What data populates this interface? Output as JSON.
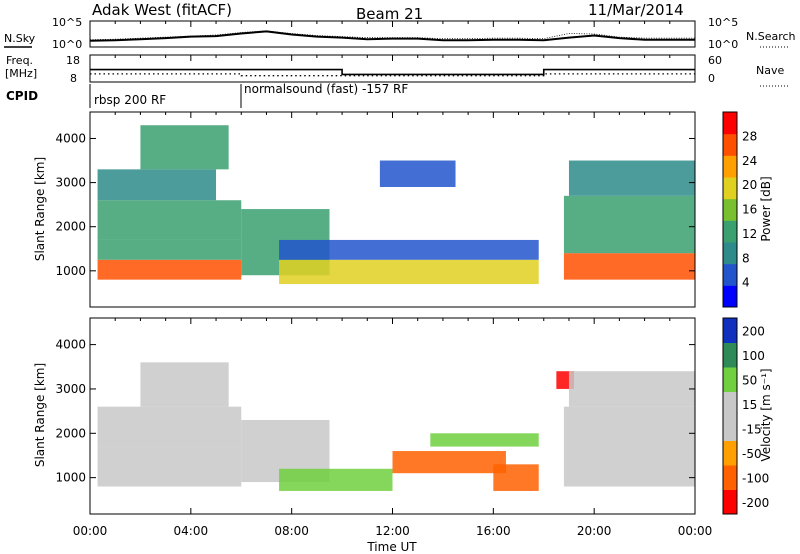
{
  "header": {
    "station": "Adak West (fitACF)",
    "beam": "Beam 21",
    "date": "11/Mar/2014"
  },
  "chart_data": [
    {
      "type": "line",
      "panel": "noise",
      "left_label": "N.Sky",
      "right_label": "N.Search",
      "yticks_left": [
        "10^5",
        "10^0"
      ],
      "yticks_right": [
        "10^5",
        "10^0"
      ],
      "x": [
        0,
        1,
        2,
        3,
        4,
        5,
        6,
        7,
        8,
        9,
        10,
        11,
        12,
        13,
        14,
        15,
        16,
        17,
        18,
        19,
        20,
        21,
        22,
        23,
        24
      ],
      "sky_log": [
        1.2,
        1.3,
        1.5,
        1.7,
        2.0,
        2.1,
        2.6,
        3.0,
        2.4,
        2.0,
        1.8,
        1.5,
        1.6,
        1.6,
        1.3,
        1.3,
        1.4,
        1.4,
        1.3,
        1.8,
        2.2,
        1.7,
        1.4,
        1.4,
        1.4
      ],
      "search_log": [
        1.4,
        1.5,
        1.7,
        1.9,
        2.1,
        2.3,
        2.8,
        3.1,
        2.6,
        2.2,
        2.0,
        1.8,
        1.8,
        1.8,
        1.6,
        1.6,
        1.7,
        1.7,
        1.6,
        2.6,
        2.5,
        1.9,
        1.7,
        1.7,
        1.7
      ]
    },
    {
      "type": "line",
      "panel": "frequency",
      "left_label": "Freq. [MHz]",
      "right_label": "Nave",
      "yticks_left": [
        "18",
        "8"
      ],
      "yticks_right": [
        "60",
        "0"
      ],
      "freq_steps": [
        [
          0,
          12.6
        ],
        [
          10,
          10.8
        ],
        [
          18,
          12.6
        ],
        [
          24,
          12.6
        ]
      ],
      "nave_steps": [
        [
          0,
          18
        ],
        [
          6,
          14
        ],
        [
          18,
          18
        ],
        [
          24,
          18
        ]
      ]
    },
    {
      "type": "table",
      "panel": "cpid",
      "label": "CPID",
      "segments": [
        {
          "start": 0,
          "end": 6,
          "text": "rbsp 200 RF"
        },
        {
          "start": 6,
          "end": 24,
          "text": "normalsound (fast) -157 RF"
        }
      ]
    },
    {
      "type": "heatmap",
      "panel": "power",
      "ylabel": "Slant Range [km]",
      "yticks": [
        "1000",
        "2000",
        "3000",
        "4000"
      ],
      "ytick_values": [
        1000,
        2000,
        3000,
        4000
      ],
      "ylim": [
        180,
        4600
      ],
      "xlim": [
        0,
        24
      ],
      "colorbar_label": "Power [dB]",
      "colorbar_ticks": [
        "28",
        "24",
        "20",
        "16",
        "12",
        "8",
        "4"
      ],
      "colorbar_values": [
        28,
        24,
        20,
        16,
        12,
        8,
        4
      ],
      "clim": [
        0,
        32
      ],
      "colors": [
        "#0000ff",
        "#2255cc",
        "#2e8b8b",
        "#3aa070",
        "#78c030",
        "#e0d020",
        "#ffa000",
        "#ff5000",
        "#ff0000"
      ],
      "regions": [
        {
          "t0": 0.3,
          "t1": 6.0,
          "r0": 800,
          "r1": 1250,
          "v": 28
        },
        {
          "t0": 0.3,
          "t1": 6.0,
          "r0": 1250,
          "r1": 1700,
          "v": 14
        },
        {
          "t0": 0.3,
          "t1": 6.0,
          "r0": 1700,
          "r1": 2600,
          "v": 11
        },
        {
          "t0": 0.3,
          "t1": 5.0,
          "r0": 2600,
          "r1": 3300,
          "v": 9
        },
        {
          "t0": 2.0,
          "t1": 5.5,
          "r0": 3300,
          "r1": 4300,
          "v": 14
        },
        {
          "t0": 6.0,
          "t1": 9.5,
          "r0": 900,
          "r1": 2400,
          "v": 12
        },
        {
          "t0": 7.5,
          "t1": 17.8,
          "r0": 700,
          "r1": 1250,
          "v": 18
        },
        {
          "t0": 7.5,
          "t1": 17.8,
          "r0": 1250,
          "r1": 1700,
          "v": 6
        },
        {
          "t0": 11.5,
          "t1": 14.5,
          "r0": 2900,
          "r1": 3500,
          "v": 5
        },
        {
          "t0": 18.8,
          "t1": 24.0,
          "r0": 800,
          "r1": 1400,
          "v": 26
        },
        {
          "t0": 18.8,
          "t1": 24.0,
          "r0": 1400,
          "r1": 2700,
          "v": 12
        },
        {
          "t0": 19.0,
          "t1": 24.0,
          "r0": 2700,
          "r1": 3500,
          "v": 9
        }
      ]
    },
    {
      "type": "heatmap",
      "panel": "velocity",
      "xlabel": "Time UT",
      "ylabel": "Slant Range [km]",
      "xticks": [
        "00:00",
        "04:00",
        "08:00",
        "12:00",
        "16:00",
        "20:00",
        "00:00"
      ],
      "xtick_values": [
        0,
        4,
        8,
        12,
        16,
        20,
        24
      ],
      "yticks": [
        "1000",
        "2000",
        "3000",
        "4000"
      ],
      "ytick_values": [
        1000,
        2000,
        3000,
        4000
      ],
      "ylim": [
        180,
        4600
      ],
      "xlim": [
        0,
        24
      ],
      "colorbar_label": "Velocity [m s⁻¹]",
      "colorbar_ticks": [
        "200",
        "100",
        "50",
        "15",
        "-15",
        "-50",
        "-100",
        "-200"
      ],
      "colorbar_values": [
        200,
        100,
        50,
        15,
        -15,
        -50,
        -100,
        -200
      ],
      "clim": [
        -250,
        250
      ],
      "colors": [
        "#ff0000",
        "#ff6000",
        "#ffa000",
        "#c8c8c8",
        "#c8c8c8",
        "#70d040",
        "#2e8b57",
        "#1030c0"
      ],
      "regions": [
        {
          "t0": 0.3,
          "t1": 6.0,
          "r0": 800,
          "r1": 1700,
          "v": 0
        },
        {
          "t0": 0.3,
          "t1": 6.0,
          "r0": 1700,
          "r1": 2600,
          "v": 5
        },
        {
          "t0": 2.0,
          "t1": 5.5,
          "r0": 2600,
          "r1": 3600,
          "v": -5
        },
        {
          "t0": 6.0,
          "t1": 9.5,
          "r0": 900,
          "r1": 2300,
          "v": 0
        },
        {
          "t0": 7.5,
          "t1": 12.0,
          "r0": 700,
          "r1": 1200,
          "v": 60
        },
        {
          "t0": 12.0,
          "t1": 16.5,
          "r0": 1100,
          "r1": 1600,
          "v": -60
        },
        {
          "t0": 13.5,
          "t1": 17.8,
          "r0": 1700,
          "r1": 2000,
          "v": 60
        },
        {
          "t0": 16.0,
          "t1": 17.8,
          "r0": 700,
          "r1": 1300,
          "v": -70
        },
        {
          "t0": 18.5,
          "t1": 19.2,
          "r0": 3000,
          "r1": 3400,
          "v": -200
        },
        {
          "t0": 18.8,
          "t1": 24.0,
          "r0": 800,
          "r1": 2600,
          "v": 0
        },
        {
          "t0": 19.0,
          "t1": 24.0,
          "r0": 2600,
          "r1": 3400,
          "v": 40
        }
      ]
    }
  ]
}
